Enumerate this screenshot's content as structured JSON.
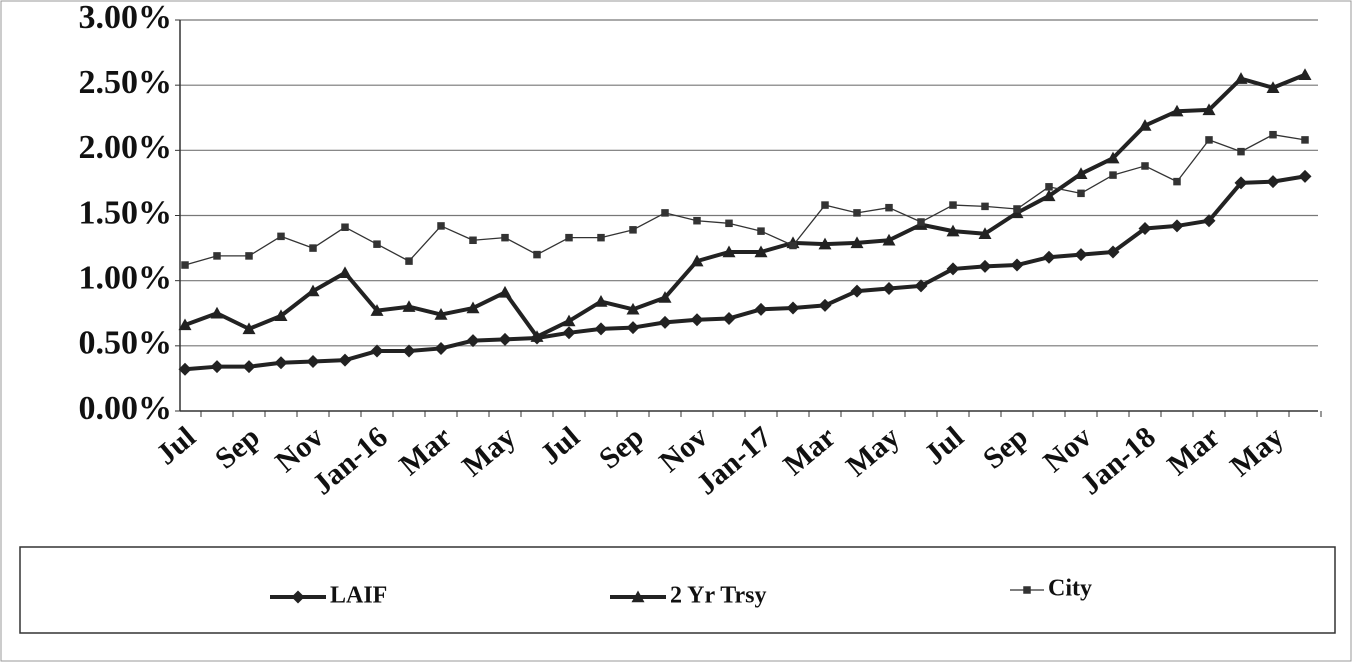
{
  "chart_data": {
    "type": "line",
    "categories": [
      "Jul",
      null,
      "Sep",
      null,
      "Nov",
      null,
      "Jan-16",
      null,
      "Mar",
      null,
      "May",
      null,
      "Jul",
      null,
      "Sep",
      null,
      "Nov",
      null,
      "Jan-17",
      null,
      "Mar",
      null,
      "May",
      null,
      "Jul",
      null,
      "Sep",
      null,
      "Nov",
      null,
      "Jan-18",
      null,
      "Mar",
      null,
      "May",
      null
    ],
    "series": [
      {
        "name": "LAIF",
        "color": "#222222",
        "marker": "diamond",
        "values": [
          0.32,
          0.34,
          0.34,
          0.37,
          0.38,
          0.39,
          0.46,
          0.46,
          0.48,
          0.54,
          0.55,
          0.56,
          0.6,
          0.63,
          0.64,
          0.68,
          0.7,
          0.71,
          0.78,
          0.79,
          0.81,
          0.92,
          0.94,
          0.96,
          1.09,
          1.11,
          1.12,
          1.18,
          1.2,
          1.22,
          1.4,
          1.42,
          1.46,
          1.75,
          1.76,
          1.8
        ]
      },
      {
        "name": "2 Yr Trsy",
        "color": "#222222",
        "marker": "triangle",
        "values": [
          0.66,
          0.75,
          0.63,
          0.73,
          0.92,
          1.06,
          0.77,
          0.8,
          0.74,
          0.79,
          0.91,
          0.57,
          0.69,
          0.84,
          0.78,
          0.87,
          1.15,
          1.22,
          1.22,
          1.29,
          1.28,
          1.29,
          1.31,
          1.43,
          1.38,
          1.36,
          1.52,
          1.65,
          1.82,
          1.94,
          2.19,
          2.3,
          2.31,
          2.55,
          2.48,
          2.58
        ]
      },
      {
        "name": "City",
        "color": "#333333",
        "marker": "square",
        "values": [
          1.12,
          1.19,
          1.19,
          1.34,
          1.25,
          1.41,
          1.28,
          1.15,
          1.42,
          1.31,
          1.33,
          1.2,
          1.33,
          1.33,
          1.39,
          1.52,
          1.46,
          1.44,
          1.38,
          1.27,
          1.58,
          1.52,
          1.56,
          1.45,
          1.58,
          1.57,
          1.55,
          1.72,
          1.67,
          1.81,
          1.88,
          1.76,
          2.08,
          1.99,
          2.12,
          2.08
        ]
      }
    ],
    "ylim": [
      0,
      3
    ],
    "yticks": [
      {
        "value": 0,
        "label": "0.00%"
      },
      {
        "value": 0.5,
        "label": "0.50%"
      },
      {
        "value": 1,
        "label": "1.00%"
      },
      {
        "value": 1.5,
        "label": "1.50%"
      },
      {
        "value": 2,
        "label": "2.00%"
      },
      {
        "value": 2.5,
        "label": "2.50%"
      },
      {
        "value": 3,
        "label": "3.00%"
      }
    ],
    "grid": true,
    "legend": "bottom"
  }
}
